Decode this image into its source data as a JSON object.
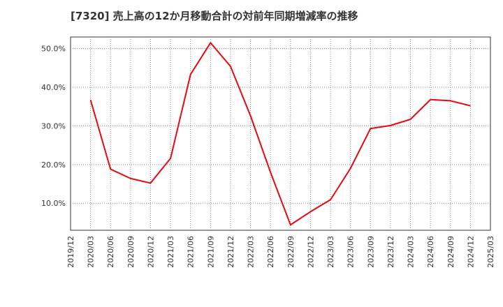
{
  "chart_data": {
    "type": "line",
    "title": "[7320]  売上高の12か月移動合計の対前年同期増減率の推移",
    "xlabel": "",
    "ylabel": "",
    "y_tick_labels": [
      "10.0%",
      "20.0%",
      "30.0%",
      "40.0%",
      "50.0%"
    ],
    "y_tick_values": [
      10,
      20,
      30,
      40,
      50
    ],
    "ylim": [
      3,
      53
    ],
    "x_tick_labels": [
      "2019/12",
      "2020/03",
      "2020/06",
      "2020/09",
      "2020/12",
      "2021/03",
      "2021/06",
      "2021/09",
      "2021/12",
      "2022/03",
      "2022/06",
      "2022/09",
      "2022/12",
      "2023/03",
      "2023/06",
      "2023/09",
      "2023/12",
      "2024/03",
      "2024/06",
      "2024/09",
      "2024/12",
      "2025/03"
    ],
    "grid": true,
    "series": [
      {
        "name": "売上高の12か月移動合計の対前年同期増減率",
        "color": "#e8090f",
        "x": [
          "2020/03",
          "2020/06",
          "2020/09",
          "2020/12",
          "2021/03",
          "2021/06",
          "2021/09",
          "2021/12",
          "2022/03",
          "2022/06",
          "2022/09",
          "2022/12",
          "2023/03",
          "2023/06",
          "2023/09",
          "2023/12",
          "2024/03",
          "2024/06",
          "2024/09",
          "2024/12"
        ],
        "values": [
          36.7,
          18.8,
          16.4,
          15.2,
          21.6,
          43.3,
          51.5,
          45.4,
          32.6,
          18.0,
          4.4,
          7.8,
          10.9,
          19.0,
          29.3,
          30.1,
          31.7,
          36.8,
          36.5,
          35.2
        ]
      }
    ]
  }
}
